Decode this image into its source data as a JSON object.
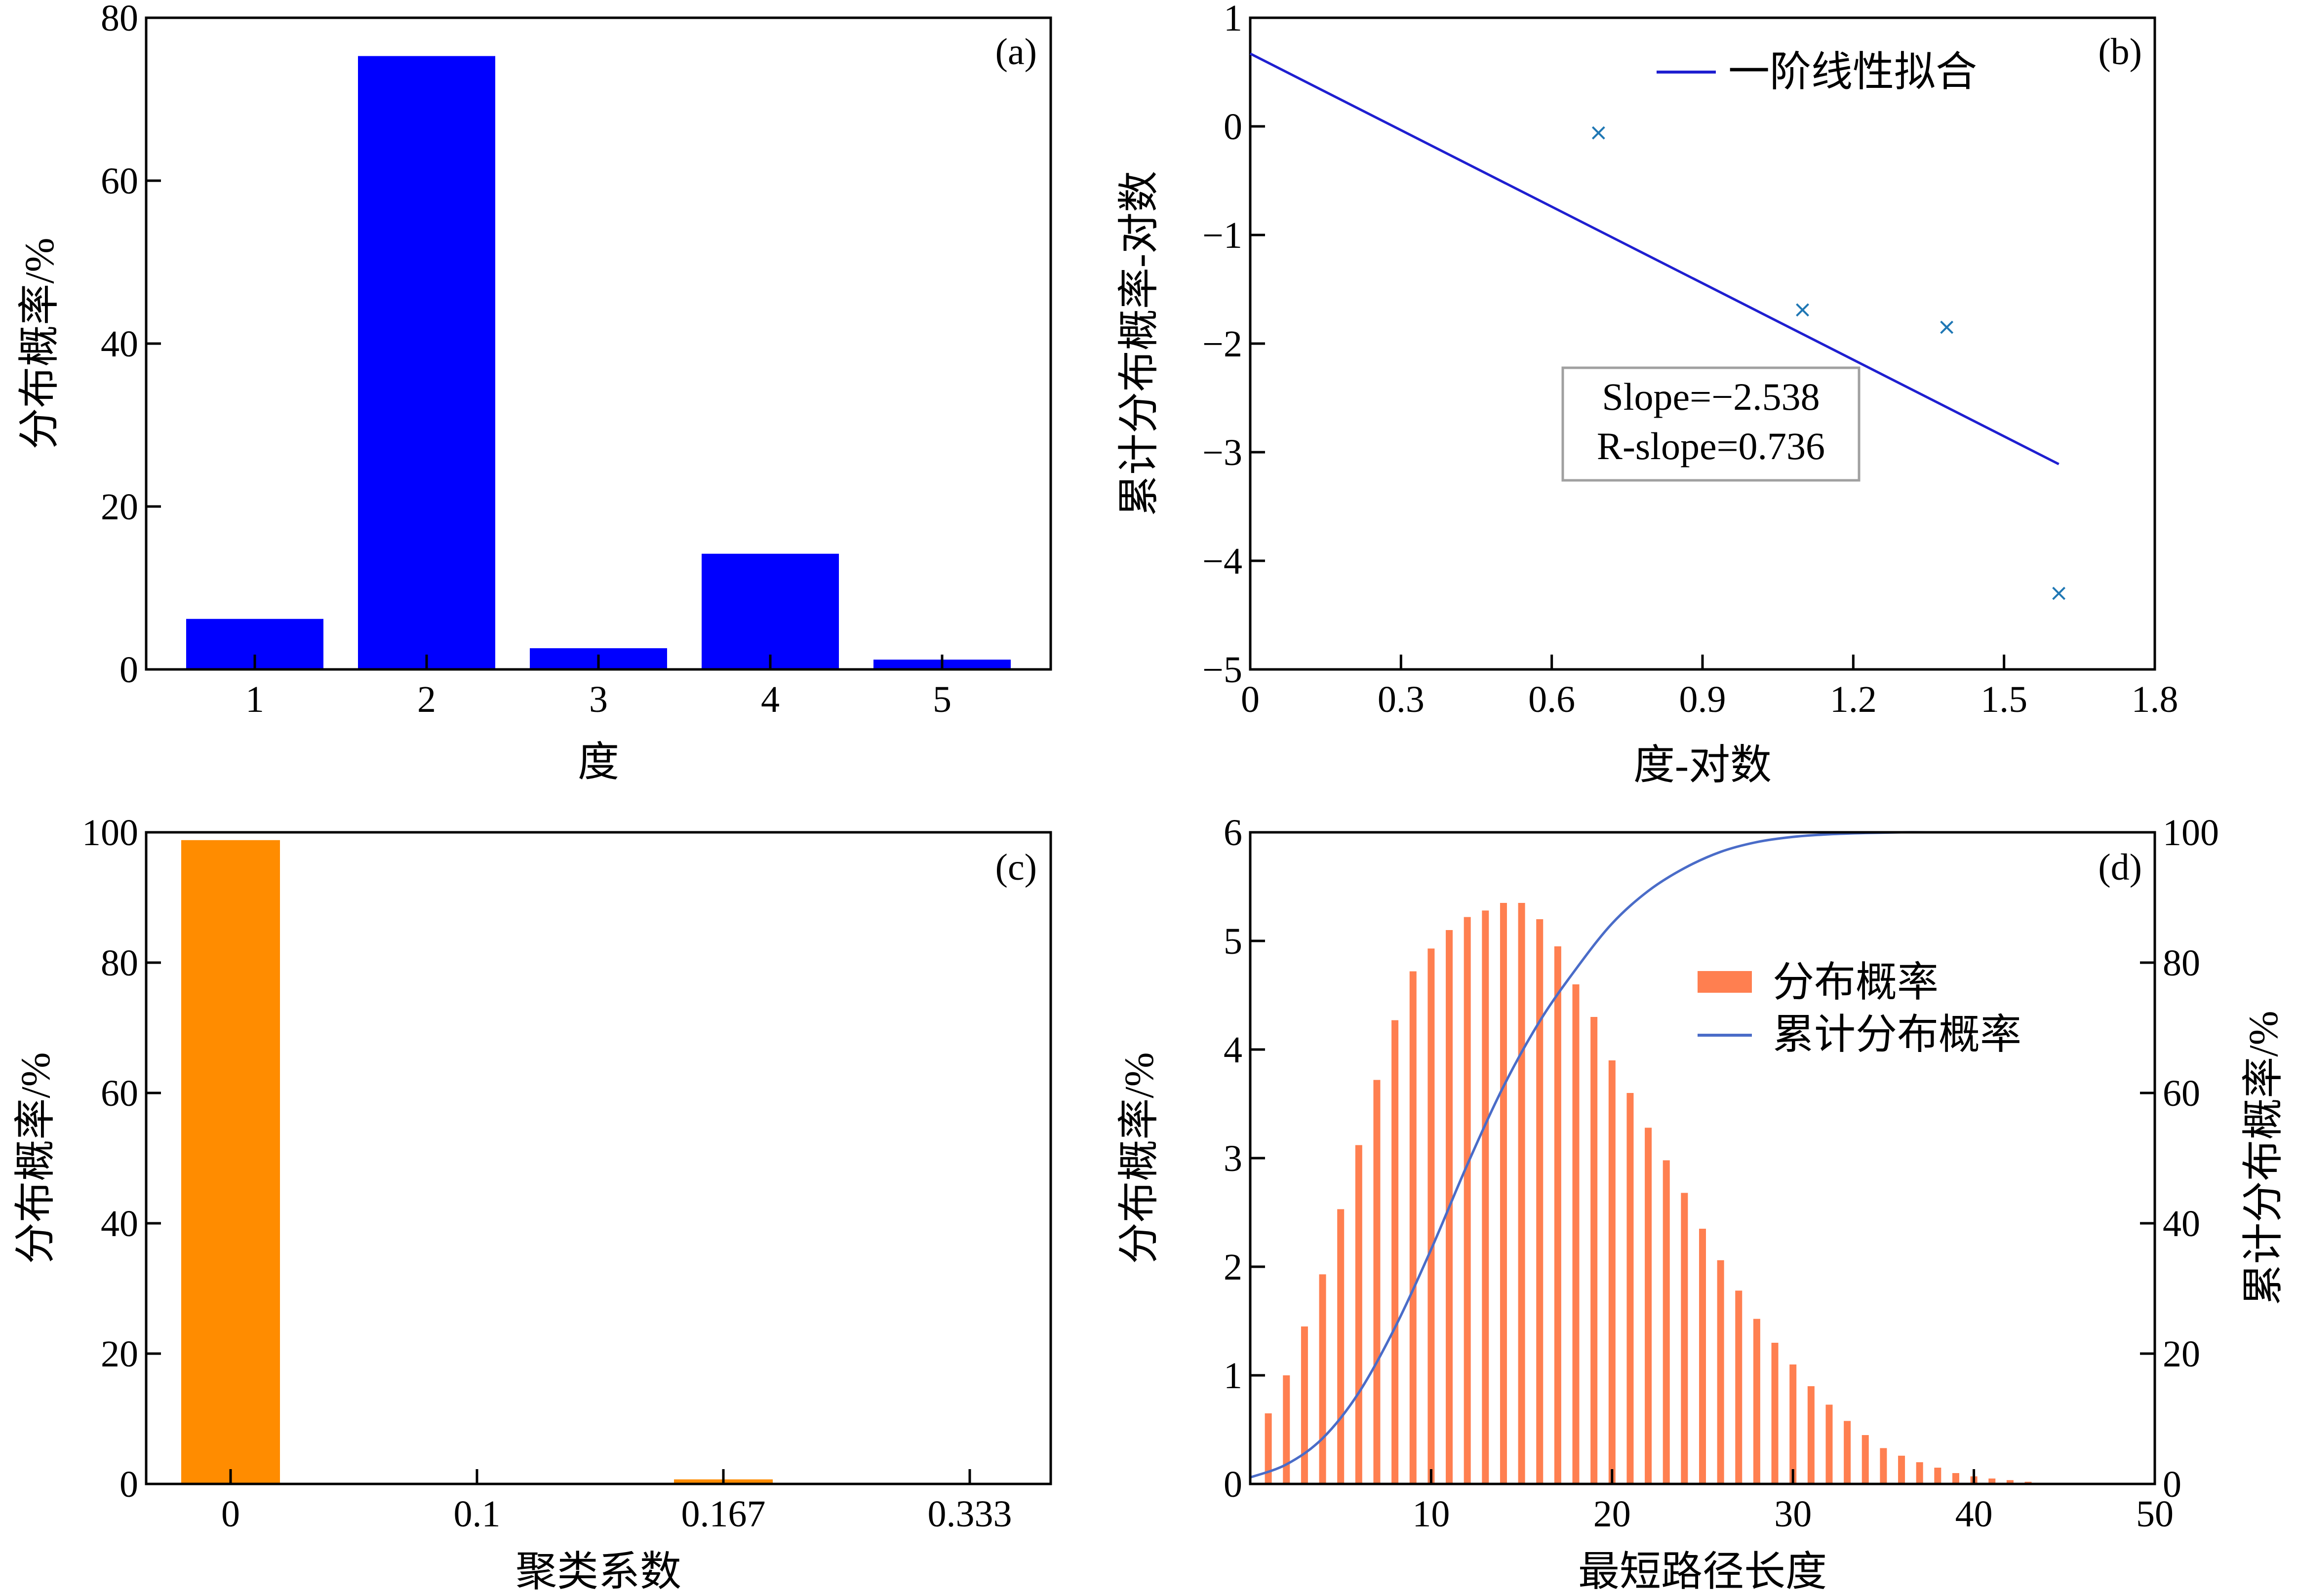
{
  "colors": {
    "blue_bar": "#0000ff",
    "fit_line": "#1f1fd0",
    "marker": "#1f77b4",
    "orange_bar": "#ff8c00",
    "dist_bar": "#ff7f50",
    "cdf_line": "#4a6cc8",
    "axis": "#000000"
  },
  "chart_data": [
    {
      "panel": "a",
      "type": "bar",
      "tag": "(a)",
      "xlabel": "度",
      "ylabel": "分布概率/%",
      "categories": [
        "1",
        "2",
        "3",
        "4",
        "5"
      ],
      "values": [
        6.2,
        75.3,
        2.6,
        14.2,
        1.2
      ],
      "ylim": [
        0,
        80
      ],
      "yticks": [
        "0",
        "20",
        "40",
        "60",
        "80"
      ]
    },
    {
      "panel": "b",
      "type": "scatter",
      "tag": "(b)",
      "xlabel": "度-对数",
      "ylabel": "累计分布概率-对数",
      "xlim": [
        0,
        1.8
      ],
      "ylim": [
        -5,
        1
      ],
      "xticks": [
        "0",
        "0.3",
        "0.6",
        "0.9",
        "1.2",
        "1.5",
        "1.8"
      ],
      "yticks": [
        "−5",
        "−4",
        "−3",
        "−2",
        "−1",
        "0",
        "1"
      ],
      "points": [
        {
          "x": 0.693,
          "y": -0.06
        },
        {
          "x": 1.099,
          "y": -1.69
        },
        {
          "x": 1.386,
          "y": -1.85
        },
        {
          "x": 1.609,
          "y": -4.3
        }
      ],
      "fit_line": {
        "x": [
          0,
          1.609
        ],
        "y": [
          0.67,
          -3.11
        ]
      },
      "legend": [
        "一阶线性拟合"
      ],
      "annotation": [
        "Slope=−2.538",
        "R-slope=0.736"
      ]
    },
    {
      "panel": "c",
      "type": "bar",
      "tag": "(c)",
      "xlabel": "聚类系数",
      "ylabel": "分布概率/%",
      "categories": [
        "0",
        "0.1",
        "0.167",
        "0.333"
      ],
      "values": [
        98.8,
        0,
        0.7,
        0
      ],
      "ylim": [
        0,
        100
      ],
      "yticks": [
        "0",
        "20",
        "40",
        "60",
        "80",
        "100"
      ]
    },
    {
      "panel": "d",
      "type": "bar",
      "tag": "(d)",
      "xlabel": "最短路径长度",
      "ylabel": "分布概率/%",
      "ylabel_right": "累计分布概率/%",
      "xlim": [
        0,
        50
      ],
      "ylim": [
        0,
        6
      ],
      "ylim_right": [
        0,
        100
      ],
      "xticks": [
        "10",
        "20",
        "30",
        "40",
        "50"
      ],
      "yticks": [
        "0",
        "1",
        "2",
        "3",
        "4",
        "5",
        "6"
      ],
      "yticks_right": [
        "0",
        "20",
        "40",
        "60",
        "80",
        "100"
      ],
      "legend": [
        "分布概率",
        "累计分布概率"
      ],
      "x": [
        1,
        2,
        3,
        4,
        5,
        6,
        7,
        8,
        9,
        10,
        11,
        12,
        13,
        14,
        15,
        16,
        17,
        18,
        19,
        20,
        21,
        22,
        23,
        24,
        25,
        26,
        27,
        28,
        29,
        30,
        31,
        32,
        33,
        34,
        35,
        36,
        37,
        38,
        39,
        40,
        41,
        42,
        43,
        44,
        45,
        46
      ],
      "values": [
        0.65,
        1.0,
        1.45,
        1.93,
        2.53,
        3.12,
        3.72,
        4.27,
        4.72,
        4.93,
        5.1,
        5.22,
        5.28,
        5.35,
        5.35,
        5.2,
        4.95,
        4.6,
        4.3,
        3.9,
        3.6,
        3.28,
        2.98,
        2.68,
        2.35,
        2.06,
        1.78,
        1.52,
        1.3,
        1.1,
        0.9,
        0.73,
        0.58,
        0.45,
        0.33,
        0.26,
        0.2,
        0.15,
        0.1,
        0.07,
        0.05,
        0.035,
        0.02,
        0.01,
        0.008,
        0.005
      ],
      "cdf": {
        "x": [
          0,
          2,
          4,
          6,
          8,
          10,
          12,
          14,
          16,
          18,
          20,
          22,
          24,
          26,
          28,
          30,
          32,
          34,
          36,
          38,
          40,
          45,
          50
        ],
        "y": [
          1,
          3,
          7,
          14,
          24,
          36,
          49,
          61,
          71,
          79,
          86,
          91,
          94.5,
          97,
          98.5,
          99.3,
          99.7,
          99.9,
          100,
          100,
          100,
          100,
          100
        ]
      }
    }
  ]
}
